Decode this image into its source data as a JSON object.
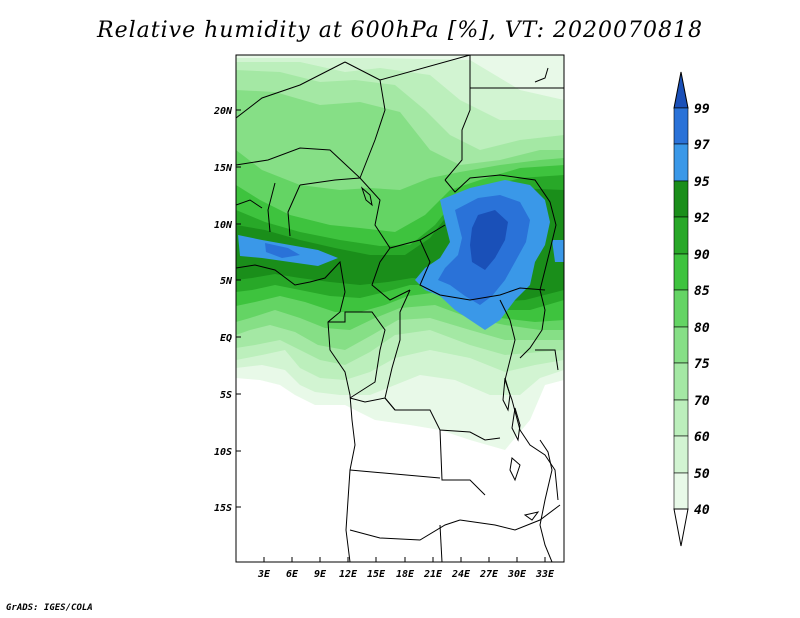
{
  "title": "Relative humidity at 600hPa [%], VT: 2020070818",
  "credit": "GrADS: IGES/COLA",
  "map": {
    "lat_labels": [
      "20N",
      "15N",
      "10N",
      "5N",
      "EQ",
      "5S",
      "10S",
      "15S"
    ],
    "lon_labels": [
      "3E",
      "6E",
      "9E",
      "12E",
      "15E",
      "18E",
      "21E",
      "24E",
      "27E",
      "30E",
      "33E"
    ],
    "lat_range": [
      -20,
      24
    ],
    "lon_range": [
      0,
      35
    ]
  },
  "colorbar": {
    "levels": [
      "99",
      "97",
      "95",
      "92",
      "90",
      "85",
      "80",
      "75",
      "70",
      "60",
      "50",
      "40"
    ],
    "colors": {
      "below_40": "#ffffff",
      "40_50": "#e8f9e8",
      "50_60": "#d2f4d2",
      "60_70": "#bcefbc",
      "70_75": "#a4e8a4",
      "75_80": "#86df86",
      "80_85": "#64d464",
      "85_90": "#3ec33e",
      "90_92": "#28a828",
      "92_95": "#1a8e1a",
      "95_97": "#3a98e8",
      "97_99": "#2a72d8",
      "above_99": "#1a50b8"
    }
  }
}
